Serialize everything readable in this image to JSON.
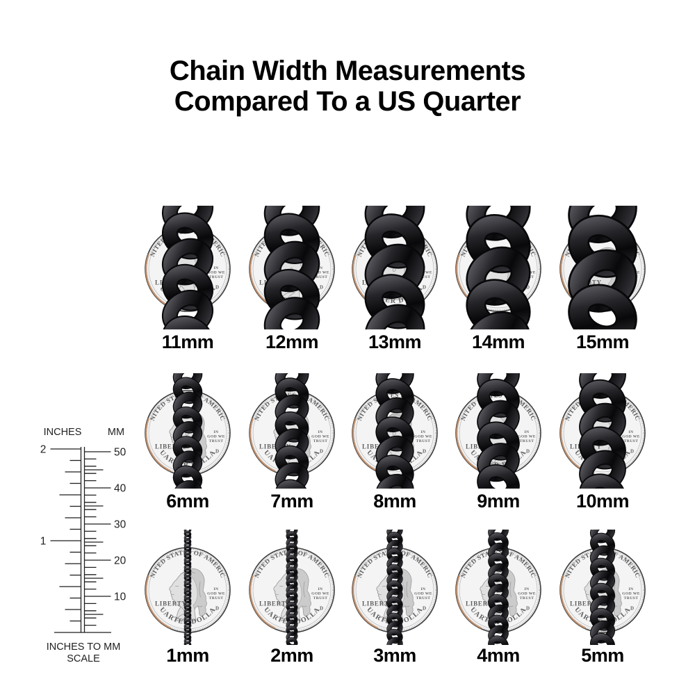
{
  "title": {
    "line1": "Chain Width Measurements",
    "line2": "Compared To a US Quarter"
  },
  "grid": {
    "rows": [
      {
        "labels": [
          "11mm",
          "12mm",
          "13mm",
          "14mm",
          "15mm"
        ],
        "mm": [
          11,
          12,
          13,
          14,
          15
        ]
      },
      {
        "labels": [
          "6mm",
          "7mm",
          "8mm",
          "9mm",
          "10mm"
        ],
        "mm": [
          6,
          7,
          8,
          9,
          10
        ]
      },
      {
        "labels": [
          "1mm",
          "2mm",
          "3mm",
          "4mm",
          "5mm"
        ],
        "mm": [
          1,
          2,
          3,
          4,
          5
        ]
      }
    ]
  },
  "ruler": {
    "left_heading": "INCHES",
    "right_heading": "MM",
    "inch_labels": [
      {
        "text": "2",
        "value": 2
      },
      {
        "text": "1",
        "value": 1
      }
    ],
    "mm_labels": [
      {
        "text": "50",
        "value": 50
      },
      {
        "text": "40",
        "value": 40
      },
      {
        "text": "30",
        "value": 30
      },
      {
        "text": "20",
        "value": 20
      },
      {
        "text": "10",
        "value": 10
      }
    ],
    "caption_line1": "INCHES TO MM",
    "caption_line2": "SCALE"
  },
  "coin": {
    "top_text": "UNITED STATES OF AMERICA",
    "left_text": "LIBERTY",
    "motto_lines": [
      "IN",
      "GOD WE",
      "TRUST"
    ],
    "bottom_text": "QUARTER DOLLAR",
    "mint_mark": "D"
  },
  "colors": {
    "background": "#ffffff",
    "title_text": "#000000",
    "label_text": "#000000",
    "ruler_ink": "#1f1f1f",
    "chain_dark": "#08080a",
    "chain_mid": "#26262a",
    "chain_light": "#55555b",
    "coin_field": "#f4f4f4",
    "coin_engraving": "#5e5e5e",
    "coin_rim": "#3e3e3e",
    "coin_reeding": "#bdbdbd",
    "coin_copper_edge": "#c08a63",
    "bust_fill": "#e0e0e0",
    "bust_hair": "#c9c9c9",
    "bust_line": "#9c9c9c"
  }
}
